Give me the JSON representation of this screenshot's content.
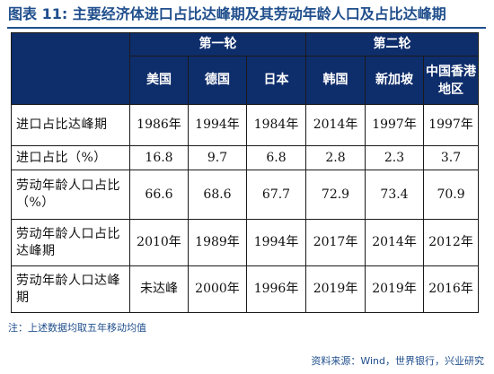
{
  "title": "图表 11: 主要经济体进口占比达峰期及其劳动年龄人口及占比达峰期",
  "table": {
    "groups": [
      "第一轮",
      "第二轮"
    ],
    "countries": [
      "美国",
      "德国",
      "日本",
      "韩国",
      "新加坡",
      "中国香港地区"
    ],
    "rows": [
      {
        "label": "进口占比达峰期",
        "values": [
          "1986年",
          "1994年",
          "1984年",
          "2014年",
          "1997年",
          "1997年"
        ]
      },
      {
        "label": "进口占比（%）",
        "values": [
          "16.8",
          "9.7",
          "6.8",
          "2.8",
          "2.3",
          "3.7"
        ]
      },
      {
        "label": "劳动年龄人口占比（%）",
        "values": [
          "66.6",
          "68.6",
          "67.7",
          "72.9",
          "73.4",
          "70.9"
        ]
      },
      {
        "label": "劳动年龄人口占比达峰期",
        "values": [
          "2010年",
          "1989年",
          "1994年",
          "2017年",
          "2014年",
          "2012年"
        ]
      },
      {
        "label": "劳动年龄人口达峰期",
        "values": [
          "未达峰",
          "2000年",
          "1996年",
          "2019年",
          "2019年",
          "2016年"
        ]
      }
    ]
  },
  "note": "注：上述数据均取五年移动均值",
  "source": "资料来源：Wind，世界银行，兴业研究",
  "colors": {
    "header_bg": "#0e2d6b",
    "title_text": "#1f4e8c"
  }
}
